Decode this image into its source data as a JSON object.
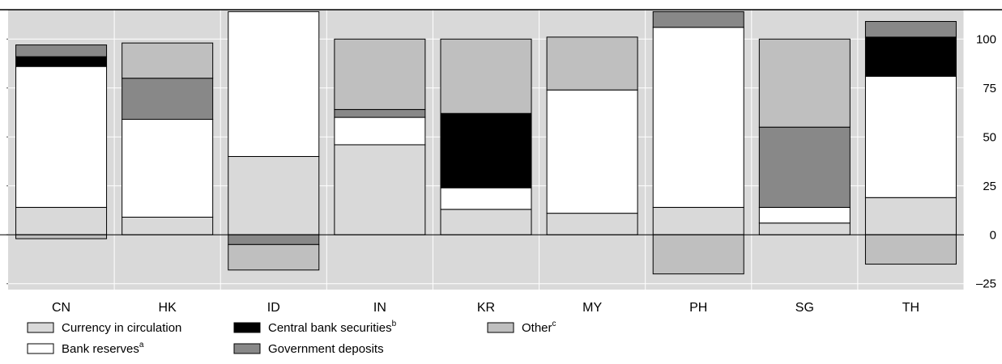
{
  "chart_data": {
    "type": "bar",
    "stacked": true,
    "categories": [
      "CN",
      "HK",
      "ID",
      "IN",
      "KR",
      "MY",
      "PH",
      "SG",
      "TH"
    ],
    "ylim": [
      -28,
      115
    ],
    "yticks": [
      -25,
      0,
      25,
      50,
      75,
      100
    ],
    "ytick_labels": [
      "–25",
      "0",
      "25",
      "50",
      "75",
      "100"
    ],
    "y_axis_side": "right",
    "grid": true,
    "legend_placement": "bottom-left",
    "series": [
      {
        "name": "Currency in circulation",
        "sup": "",
        "color": "#d9d9d9",
        "values": [
          14,
          9,
          40,
          46,
          13,
          11,
          14,
          6,
          19
        ]
      },
      {
        "name": "Bank reserves",
        "sup": "a",
        "color": "#ffffff",
        "values": [
          72,
          50,
          74,
          14,
          11,
          63,
          92,
          8,
          62
        ]
      },
      {
        "name": "Central bank securities",
        "sup": "b",
        "color": "#000000",
        "values": [
          5,
          0,
          0,
          0,
          38,
          0,
          0,
          0,
          20
        ]
      },
      {
        "name": "Government deposits",
        "sup": "",
        "color": "#888888",
        "values": [
          6,
          21,
          -5,
          4,
          0,
          0,
          8,
          41,
          8
        ]
      },
      {
        "name": "Other",
        "sup": "c",
        "color": "#bfbfbf",
        "values": [
          -2,
          18,
          -13,
          36,
          38,
          27,
          -20,
          45,
          -15
        ]
      }
    ]
  }
}
